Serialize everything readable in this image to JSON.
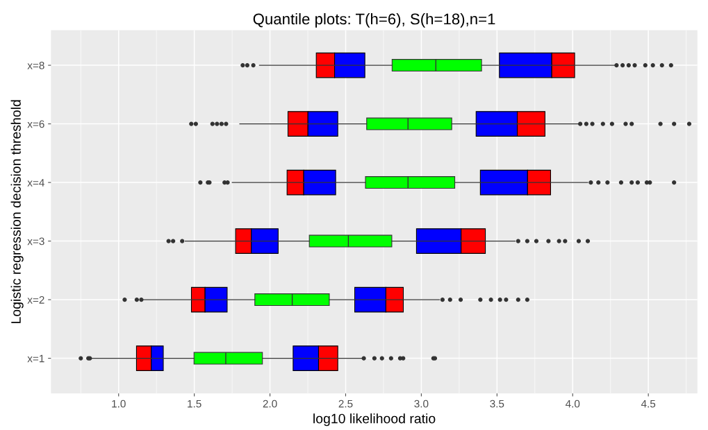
{
  "chart_data": {
    "type": "box",
    "orientation": "horizontal",
    "title": "Quantile plots: T(h=6), S(h=18),n=1",
    "xlabel": "log10 likelihood ratio",
    "ylabel": "Logistic regression decision threshold",
    "categories": [
      "x=8",
      "x=6",
      "x=4",
      "x=3",
      "x=2",
      "x=1"
    ],
    "color": "#00ff00",
    "boxes": [
      {
        "low": 1.93,
        "q1": 2.807,
        "median": 3.096,
        "q3": 3.398,
        "high": 4.28,
        "outliers": [
          1.82,
          1.85,
          1.89,
          4.29,
          4.33,
          4.37,
          4.41,
          4.48,
          4.53,
          4.59,
          4.65
        ]
      },
      {
        "low": 1.8,
        "q1": 2.639,
        "median": 2.912,
        "q3": 3.201,
        "high": 4.04,
        "outliers": [
          1.48,
          1.51,
          1.62,
          1.65,
          1.68,
          1.71,
          4.05,
          4.09,
          4.13,
          4.2,
          4.26,
          4.35,
          4.39,
          4.58,
          4.67,
          4.77
        ]
      },
      {
        "low": 1.75,
        "q1": 2.631,
        "median": 2.912,
        "q3": 3.221,
        "high": 4.1,
        "outliers": [
          1.54,
          1.59,
          1.6,
          1.7,
          1.72,
          4.12,
          4.17,
          4.23,
          4.32,
          4.39,
          4.43,
          4.49,
          4.51,
          4.67
        ]
      },
      {
        "low": 1.44,
        "q1": 2.26,
        "median": 2.518,
        "q3": 2.805,
        "high": 3.62,
        "outliers": [
          1.33,
          1.36,
          1.42,
          3.64,
          3.7,
          3.76,
          3.84,
          3.91,
          3.95,
          4.04,
          4.1
        ]
      },
      {
        "low": 1.16,
        "q1": 1.9,
        "median": 2.147,
        "q3": 2.392,
        "high": 3.12,
        "outliers": [
          1.04,
          1.12,
          1.15,
          3.14,
          3.19,
          3.26,
          3.39,
          3.46,
          3.52,
          3.56,
          3.64,
          3.7
        ]
      },
      {
        "low": 0.82,
        "q1": 1.498,
        "median": 1.708,
        "q3": 1.95,
        "high": 2.61,
        "outliers": [
          0.75,
          0.8,
          0.81,
          2.62,
          2.69,
          2.74,
          2.8,
          2.86,
          2.88,
          3.08,
          3.09
        ]
      }
    ],
    "series": [
      {
        "type": "bar",
        "color": "#ff0000",
        "base": [
          2.306,
          2.119,
          2.113,
          1.773,
          1.481,
          1.118
        ],
        "values": [
          0.121,
          0.132,
          0.11,
          0.104,
          0.09,
          0.098
        ]
      },
      {
        "type": "bar",
        "color": "#0000ff",
        "base": [
          2.427,
          2.251,
          2.223,
          1.877,
          1.571,
          1.216
        ],
        "values": [
          0.2,
          0.197,
          0.211,
          0.177,
          0.146,
          0.079
        ]
      },
      {
        "type": "bar",
        "color": "#0000ff",
        "base": [
          3.516,
          3.362,
          3.39,
          2.968,
          2.56,
          2.153
        ],
        "values": [
          0.346,
          0.272,
          0.312,
          0.295,
          0.206,
          0.168
        ]
      },
      {
        "type": "bar",
        "color": "#ff0000",
        "base": [
          3.862,
          3.634,
          3.702,
          3.263,
          2.766,
          2.321
        ],
        "values": [
          0.151,
          0.183,
          0.152,
          0.16,
          0.115,
          0.127
        ]
      }
    ],
    "xlim": [
      0.553,
      4.824
    ],
    "xticks": [
      {
        "value": 1.0,
        "label": "1.0"
      },
      {
        "value": 1.5,
        "label": "1.5"
      },
      {
        "value": 2.0,
        "label": "2.0"
      },
      {
        "value": 2.5,
        "label": "2.5"
      },
      {
        "value": 3.0,
        "label": "3.0"
      },
      {
        "value": 3.5,
        "label": "3.5"
      },
      {
        "value": 4.0,
        "label": "4.0"
      },
      {
        "value": 4.5,
        "label": "4.5"
      }
    ],
    "grid": true,
    "legend": false
  }
}
